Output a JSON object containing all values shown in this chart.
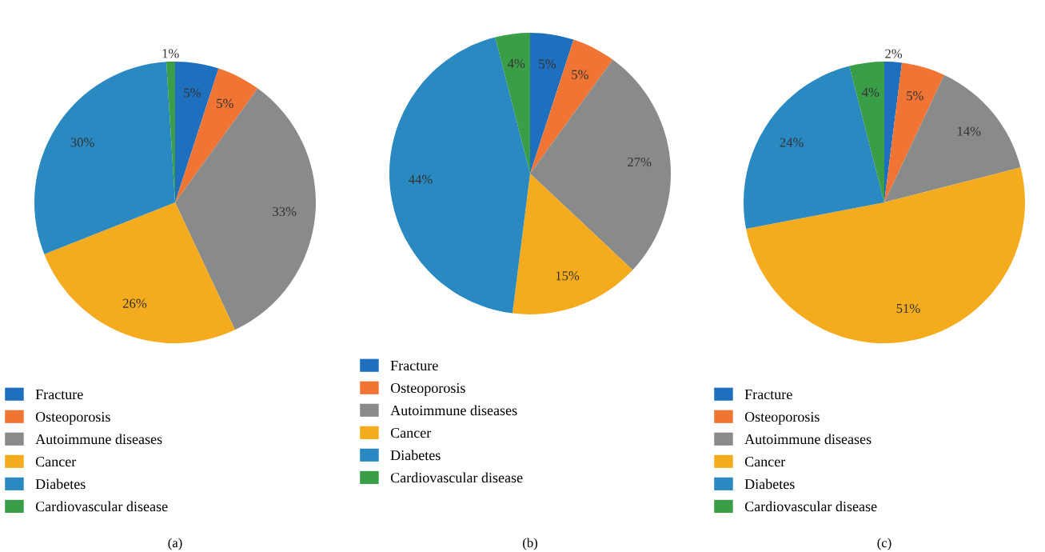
{
  "chart_data": [
    {
      "type": "pie",
      "title": "(a)",
      "legend": "bottom left",
      "categories": [
        "Fracture",
        "Osteoporosis",
        "Autoimmune diseases",
        "Cancer",
        "Diabetes",
        "Cardiovascular disease"
      ],
      "values": [
        5,
        5,
        33,
        26,
        30,
        1
      ],
      "value_labels": [
        "5%",
        "5%",
        "33%",
        "26%",
        "30%",
        "1%"
      ],
      "colors": [
        "#1f6fbf",
        "#f07534",
        "#898b8a",
        "#f5ab1e",
        "#2989c0",
        "#3a9e48"
      ]
    },
    {
      "type": "pie",
      "title": "(b)",
      "legend": "bottom left",
      "categories": [
        "Fracture",
        "Osteoporosis",
        "Autoimmune diseases",
        "Cancer",
        "Diabetes",
        "Cardiovascular disease"
      ],
      "values": [
        5,
        5,
        27,
        15,
        44,
        4
      ],
      "value_labels": [
        "5%",
        "5%",
        "27%",
        "15%",
        "44%",
        "4%"
      ],
      "colors": [
        "#1f6fbf",
        "#f07534",
        "#898b8a",
        "#f5ab1e",
        "#2989c0",
        "#3a9e48"
      ]
    },
    {
      "type": "pie",
      "title": "(c)",
      "legend": "bottom left",
      "categories": [
        "Fracture",
        "Osteoporosis",
        "Autoimmune diseases",
        "Cancer",
        "Diabetes",
        "Cardiovascular disease"
      ],
      "values": [
        2,
        5,
        14,
        51,
        24,
        4
      ],
      "value_labels": [
        "2%",
        "5%",
        "14%",
        "51%",
        "24%",
        "4%"
      ],
      "colors": [
        "#1f6fbf",
        "#f07534",
        "#898b8a",
        "#f5ab1e",
        "#2989c0",
        "#3a9e48"
      ]
    }
  ]
}
